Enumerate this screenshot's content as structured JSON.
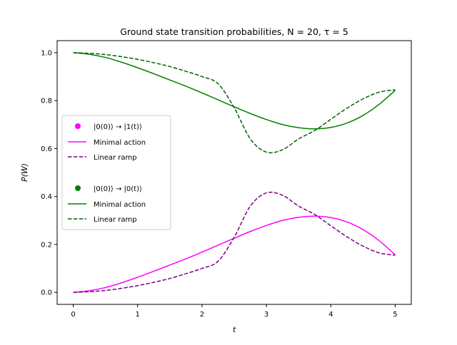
{
  "chart_data": {
    "type": "line",
    "title": "Ground state transition probabilities, N = 20, τ = 5",
    "xlabel": "t",
    "ylabel": "P(W)",
    "xlim": [
      -0.25,
      5.25
    ],
    "ylim": [
      -0.05,
      1.05
    ],
    "xticks": [
      0,
      1,
      2,
      3,
      4,
      5
    ],
    "yticks": [
      0.0,
      0.2,
      0.4,
      0.6,
      0.8,
      1.0
    ],
    "xtick_labels": [
      "0",
      "1",
      "2",
      "3",
      "4",
      "5"
    ],
    "ytick_labels": [
      "0.0",
      "0.2",
      "0.4",
      "0.6",
      "0.8",
      "1.0"
    ],
    "grid": false,
    "legend_position": "center-left",
    "x": [
      0,
      0.25,
      0.5,
      0.75,
      1,
      1.25,
      1.5,
      1.75,
      2,
      2.25,
      2.5,
      2.75,
      3,
      3.25,
      3.5,
      3.75,
      4,
      4.25,
      4.5,
      4.75,
      5
    ],
    "legend_groups": [
      {
        "header": "|0(0)⟩ → |1(t)⟩",
        "header_color": "#ff00ff",
        "series_indices": [
          0,
          1
        ]
      },
      {
        "header": "|0(0)⟩ → |0(t)⟩",
        "header_color": "#008000",
        "series_indices": [
          2,
          3
        ]
      }
    ],
    "series": [
      {
        "name": "Minimal action",
        "color": "#ff00ff",
        "dash": "solid",
        "values": [
          0.0,
          0.007,
          0.02,
          0.04,
          0.063,
          0.088,
          0.114,
          0.14,
          0.168,
          0.197,
          0.226,
          0.254,
          0.279,
          0.3,
          0.313,
          0.318,
          0.312,
          0.294,
          0.262,
          0.216,
          0.157
        ]
      },
      {
        "name": "Linear ramp",
        "color": "#800080",
        "dash": "dashed",
        "values": [
          0.0,
          0.003,
          0.008,
          0.017,
          0.028,
          0.042,
          0.058,
          0.078,
          0.1,
          0.13,
          0.23,
          0.36,
          0.415,
          0.405,
          0.36,
          0.325,
          0.278,
          0.232,
          0.193,
          0.165,
          0.155
        ]
      },
      {
        "name": "Minimal action",
        "color": "#008000",
        "dash": "solid",
        "values": [
          1.0,
          0.993,
          0.98,
          0.96,
          0.937,
          0.912,
          0.886,
          0.86,
          0.832,
          0.803,
          0.774,
          0.746,
          0.721,
          0.7,
          0.687,
          0.682,
          0.688,
          0.706,
          0.738,
          0.784,
          0.843
        ]
      },
      {
        "name": "Linear ramp",
        "color": "#006400",
        "dash": "dashed",
        "values": [
          1.0,
          0.997,
          0.992,
          0.983,
          0.972,
          0.958,
          0.942,
          0.922,
          0.9,
          0.87,
          0.77,
          0.64,
          0.585,
          0.595,
          0.64,
          0.675,
          0.722,
          0.768,
          0.807,
          0.835,
          0.845
        ]
      }
    ]
  }
}
